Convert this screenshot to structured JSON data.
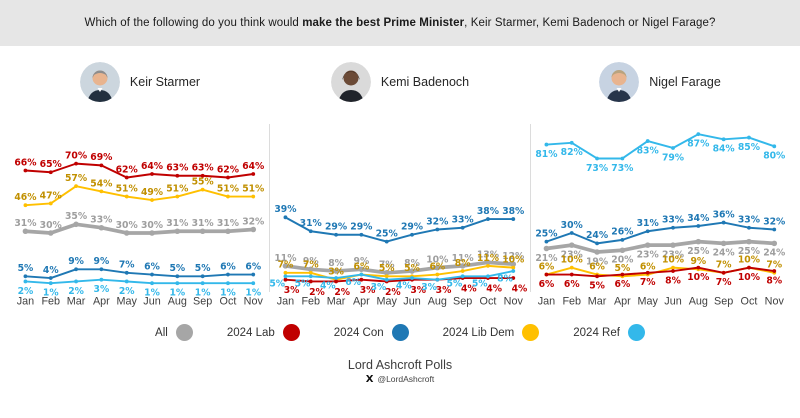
{
  "title": {
    "prefix": "Which of the following do you think would ",
    "bold": "make the best Prime Minister",
    "suffix": ", Keir Starmer, Kemi Badenoch or Nigel Farage?"
  },
  "legend": [
    {
      "label": "All",
      "color": "#a6a6a6"
    },
    {
      "label": "2024 Lab",
      "color": "#c00000"
    },
    {
      "label": "2024 Con",
      "color": "#1f78b4"
    },
    {
      "label": "2024 Lib Dem",
      "color": "#ffc000"
    },
    {
      "label": "2024 Ref",
      "color": "#33b8ea"
    }
  ],
  "footer": {
    "brand": "Lord Ashcroft Polls",
    "handle": "@LordAshcroft"
  },
  "chart_data": [
    {
      "type": "line",
      "title": "Keir Starmer",
      "x": [
        "Jan",
        "Feb",
        "Mar",
        "Apr",
        "May",
        "Jun",
        "Aug",
        "Sep",
        "Oct",
        "Nov"
      ],
      "ylim": [
        0,
        95
      ],
      "grid": false,
      "legend_position": "bottom-shared",
      "series": [
        {
          "name": "All",
          "color": "#a6a6a6",
          "label_color": "#9e9e9e",
          "thick": 3.6,
          "label_pos": "above",
          "values": [
            31,
            30,
            35,
            33,
            30,
            30,
            31,
            31,
            31,
            32
          ]
        },
        {
          "name": "2024 Lib Dem",
          "color": "#ffc000",
          "label_color": "#c19000",
          "label_pos": "above",
          "values": [
            46,
            47,
            57,
            54,
            51,
            49,
            51,
            55,
            51,
            51
          ]
        },
        {
          "name": "2024 Lab",
          "color": "#c00000",
          "label_pos": "above",
          "values": [
            66,
            65,
            70,
            69,
            62,
            64,
            63,
            63,
            62,
            64
          ]
        },
        {
          "name": "2024 Con",
          "color": "#1f78b4",
          "label_pos": "above",
          "values": [
            5,
            4,
            9,
            9,
            7,
            6,
            5,
            5,
            6,
            6
          ]
        },
        {
          "name": "2024 Ref",
          "color": "#33b8ea",
          "label_pos": "below",
          "values": [
            2,
            1,
            2,
            3,
            2,
            1,
            1,
            1,
            1,
            1
          ]
        }
      ]
    },
    {
      "type": "line",
      "title": "Kemi Badenoch",
      "x": [
        "Jan",
        "Feb",
        "Mar",
        "Apr",
        "May",
        "Jun",
        "Aug",
        "Sep",
        "Oct",
        "Nov"
      ],
      "ylim": [
        0,
        95
      ],
      "grid": false,
      "legend_position": "bottom-shared",
      "series": [
        {
          "name": "All",
          "color": "#a6a6a6",
          "label_color": "#9e9e9e",
          "thick": 3.6,
          "label_pos": "above",
          "values": [
            11,
            9,
            8,
            9,
            7,
            8,
            10,
            11,
            13,
            12
          ]
        },
        {
          "name": "2024 Lib Dem",
          "color": "#ffc000",
          "label_color": "#c19000",
          "label_pos": "above",
          "values": [
            7,
            7,
            3,
            6,
            5,
            5,
            6,
            8,
            11,
            10
          ]
        },
        {
          "name": "2024 Lab",
          "color": "#c00000",
          "label_pos": "below",
          "label_dx": 6,
          "label_dy": 13,
          "values": [
            3,
            2,
            2,
            3,
            2,
            3,
            3,
            4,
            4,
            4
          ]
        },
        {
          "name": "2024 Con",
          "color": "#1f78b4",
          "label_pos": "above",
          "values": [
            39,
            31,
            29,
            29,
            25,
            29,
            32,
            33,
            38,
            38
          ]
        },
        {
          "name": "2024 Ref",
          "color": "#33b8ea",
          "label_pos": "below",
          "label_dx": -8,
          "label_dy": 10,
          "values": [
            5,
            5,
            4,
            6,
            3,
            4,
            3,
            5,
            5,
            8
          ]
        }
      ]
    },
    {
      "type": "line",
      "title": "Nigel Farage",
      "x": [
        "Jan",
        "Feb",
        "Mar",
        "Apr",
        "May",
        "Jun",
        "Aug",
        "Sep",
        "Oct",
        "Nov"
      ],
      "ylim": [
        0,
        95
      ],
      "grid": false,
      "legend_position": "bottom-shared",
      "series": [
        {
          "name": "All",
          "color": "#a6a6a6",
          "label_color": "#9e9e9e",
          "thick": 3.6,
          "label_pos": "below",
          "values": [
            21,
            23,
            19,
            20,
            23,
            23,
            25,
            24,
            25,
            24
          ]
        },
        {
          "name": "2024 Lib Dem",
          "color": "#ffc000",
          "label_color": "#c19000",
          "label_pos": "above",
          "values": [
            6,
            10,
            6,
            5,
            6,
            10,
            9,
            7,
            10,
            7
          ]
        },
        {
          "name": "2024 Lab",
          "color": "#c00000",
          "label_pos": "below",
          "values": [
            6,
            6,
            5,
            6,
            7,
            8,
            10,
            7,
            10,
            8
          ]
        },
        {
          "name": "2024 Con",
          "color": "#1f78b4",
          "label_pos": "above",
          "values": [
            25,
            30,
            24,
            26,
            31,
            33,
            34,
            36,
            33,
            32
          ]
        },
        {
          "name": "2024 Ref",
          "color": "#33b8ea",
          "label_pos": "below",
          "values": [
            81,
            82,
            73,
            73,
            83,
            79,
            87,
            84,
            85,
            80
          ]
        }
      ]
    }
  ]
}
